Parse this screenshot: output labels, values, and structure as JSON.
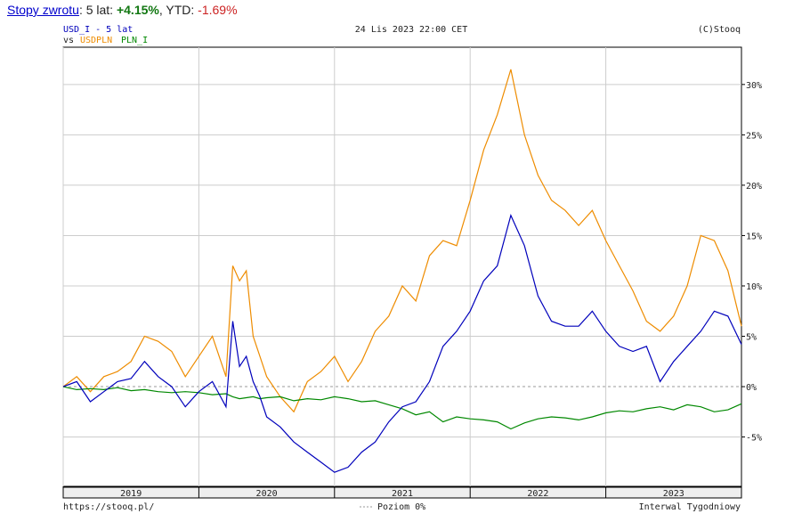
{
  "header": {
    "link_label": "Stopy zwrotu",
    "period_prefix": ": 5 lat: ",
    "period_return": "+4.15%",
    "ytd_prefix": ", YTD: ",
    "ytd_return": "-1.69%"
  },
  "chart_meta": {
    "symbol_line": "USD_I - 5 lat",
    "vs_label": "vs",
    "datetime": "24 Lis 2023 22:00 CET",
    "copyright": "(C)Stooq",
    "source_url": "https://stooq.pl/",
    "zero_level_label": "Poziom 0%",
    "interval_label": "Interwal Tygodniowy"
  },
  "colors": {
    "usd_i": "#0000bb",
    "usdpln": "#ee8c00",
    "pln_i": "#008800",
    "grid": "#cccccc",
    "axis": "#000000",
    "year_band": "#eeeeee"
  },
  "chart_data": {
    "type": "line",
    "x_axis_years": [
      "2019",
      "2020",
      "2021",
      "2022",
      "2023"
    ],
    "y_ticks": [
      "30%",
      "25%",
      "20%",
      "15%",
      "10%",
      "5%",
      "0%",
      "-5%"
    ],
    "y_tick_values": [
      30,
      25,
      20,
      15,
      10,
      5,
      0,
      -5
    ],
    "ylim": [
      -9.9,
      33.7
    ],
    "x_range": [
      "2018-11",
      "2023-11"
    ],
    "grid": true,
    "series": [
      {
        "name": "USD_I",
        "x": [
          2018.9,
          2019.0,
          2019.1,
          2019.2,
          2019.3,
          2019.4,
          2019.5,
          2019.6,
          2019.7,
          2019.8,
          2019.9,
          2020.0,
          2020.1,
          2020.15,
          2020.2,
          2020.25,
          2020.3,
          2020.35,
          2020.4,
          2020.5,
          2020.6,
          2020.7,
          2020.8,
          2020.9,
          2021.0,
          2021.1,
          2021.2,
          2021.3,
          2021.4,
          2021.5,
          2021.6,
          2021.7,
          2021.8,
          2021.9,
          2022.0,
          2022.1,
          2022.2,
          2022.3,
          2022.4,
          2022.5,
          2022.6,
          2022.7,
          2022.8,
          2022.9,
          2023.0,
          2023.1,
          2023.2,
          2023.3,
          2023.4,
          2023.5,
          2023.6,
          2023.7,
          2023.8,
          2023.9
        ],
        "values": [
          0,
          0.5,
          -1.5,
          -0.5,
          0.5,
          0.8,
          2.5,
          1.0,
          0.0,
          -2.0,
          -0.5,
          0.5,
          -2.0,
          6.5,
          2.0,
          3.0,
          0.5,
          -1.0,
          -3.0,
          -4.0,
          -5.5,
          -6.5,
          -7.5,
          -8.5,
          -8.0,
          -6.5,
          -5.5,
          -3.5,
          -2.0,
          -1.5,
          0.5,
          4.0,
          5.5,
          7.5,
          10.5,
          12.0,
          17.0,
          14.0,
          9.0,
          6.5,
          6.0,
          6.0,
          7.5,
          5.5,
          4.0,
          3.5,
          4.0,
          0.5,
          2.5,
          4.0,
          5.5,
          7.5,
          7.0,
          4.2
        ]
      },
      {
        "name": "USDPLN",
        "x": [
          2018.9,
          2019.0,
          2019.1,
          2019.2,
          2019.3,
          2019.4,
          2019.5,
          2019.6,
          2019.7,
          2019.8,
          2019.9,
          2020.0,
          2020.1,
          2020.15,
          2020.2,
          2020.25,
          2020.3,
          2020.35,
          2020.4,
          2020.5,
          2020.6,
          2020.7,
          2020.8,
          2020.9,
          2021.0,
          2021.1,
          2021.2,
          2021.3,
          2021.4,
          2021.5,
          2021.6,
          2021.7,
          2021.8,
          2021.9,
          2022.0,
          2022.1,
          2022.2,
          2022.3,
          2022.4,
          2022.5,
          2022.6,
          2022.7,
          2022.8,
          2022.9,
          2023.0,
          2023.1,
          2023.2,
          2023.3,
          2023.4,
          2023.5,
          2023.6,
          2023.7,
          2023.8,
          2023.9
        ],
        "values": [
          0,
          1.0,
          -0.5,
          1.0,
          1.5,
          2.5,
          5.0,
          4.5,
          3.5,
          1.0,
          3.0,
          5.0,
          1.0,
          12.0,
          10.5,
          11.5,
          5.0,
          3.0,
          1.0,
          -1.0,
          -2.5,
          0.5,
          1.5,
          3.0,
          0.5,
          2.5,
          5.5,
          7.0,
          10.0,
          8.5,
          13.0,
          14.5,
          14.0,
          18.5,
          23.5,
          27.0,
          31.5,
          25.0,
          21.0,
          18.5,
          17.5,
          16.0,
          17.5,
          14.5,
          12.0,
          9.5,
          6.5,
          5.5,
          7.0,
          10.0,
          15.0,
          14.5,
          11.5,
          6.0
        ]
      },
      {
        "name": "PLN_I",
        "x": [
          2018.9,
          2019.0,
          2019.1,
          2019.2,
          2019.3,
          2019.4,
          2019.5,
          2019.6,
          2019.7,
          2019.8,
          2019.9,
          2020.0,
          2020.1,
          2020.15,
          2020.2,
          2020.25,
          2020.3,
          2020.35,
          2020.4,
          2020.5,
          2020.6,
          2020.7,
          2020.8,
          2020.9,
          2021.0,
          2021.1,
          2021.2,
          2021.3,
          2021.4,
          2021.5,
          2021.6,
          2021.7,
          2021.8,
          2021.9,
          2022.0,
          2022.1,
          2022.2,
          2022.3,
          2022.4,
          2022.5,
          2022.6,
          2022.7,
          2022.8,
          2022.9,
          2023.0,
          2023.1,
          2023.2,
          2023.3,
          2023.4,
          2023.5,
          2023.6,
          2023.7,
          2023.8,
          2023.9
        ],
        "values": [
          0,
          -0.3,
          -0.2,
          -0.3,
          -0.1,
          -0.4,
          -0.3,
          -0.5,
          -0.6,
          -0.5,
          -0.6,
          -0.8,
          -0.7,
          -1.0,
          -1.2,
          -1.1,
          -1.0,
          -1.2,
          -1.1,
          -1.0,
          -1.4,
          -1.2,
          -1.3,
          -1.0,
          -1.2,
          -1.5,
          -1.4,
          -1.8,
          -2.2,
          -2.8,
          -2.5,
          -3.5,
          -3.0,
          -3.2,
          -3.3,
          -3.5,
          -4.2,
          -3.6,
          -3.2,
          -3.0,
          -3.1,
          -3.3,
          -3.0,
          -2.6,
          -2.4,
          -2.5,
          -2.2,
          -2.0,
          -2.3,
          -1.8,
          -2.0,
          -2.5,
          -2.3,
          -1.7
        ]
      }
    ]
  }
}
